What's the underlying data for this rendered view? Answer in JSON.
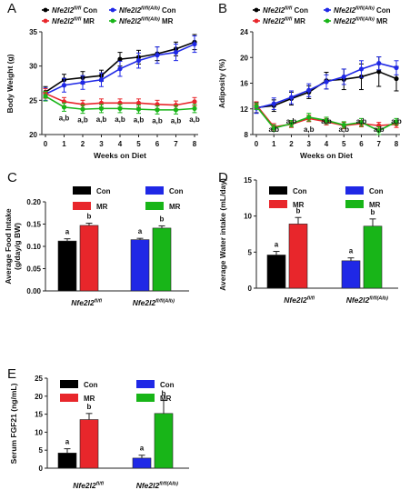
{
  "colors": {
    "Con_fl": "#000000",
    "MR_fl": "#e8262b",
    "Con_alb": "#1f28e6",
    "MR_alb": "#18b518"
  },
  "chart_data": [
    {
      "panel": "A",
      "type": "line",
      "xlabel": "Weeks on Diet",
      "ylabel": "Body Weight (g)",
      "xlim": [
        0,
        8
      ],
      "ylim": [
        20,
        35
      ],
      "yticks": [
        "20",
        "25",
        "30",
        "35"
      ],
      "xticks": [
        "0",
        "1",
        "2",
        "3",
        "4",
        "5",
        "6",
        "7",
        "8"
      ],
      "legend": [
        {
          "gene": "Nfe2l2",
          "sup": "fl/fl",
          "suffix": " Con",
          "color": "#000000"
        },
        {
          "gene": "Nfe2l2",
          "sup": "fl/fl(Alb)",
          "suffix": " Con",
          "color": "#1f28e6"
        },
        {
          "gene": "Nfe2l2",
          "sup": "fl/fl",
          "suffix": " MR",
          "color": "#e8262b"
        },
        {
          "gene": "Nfe2l2",
          "sup": "fl/fl(Alb)",
          "suffix": " MR",
          "color": "#18b518"
        }
      ],
      "x": [
        0,
        1,
        2,
        3,
        4,
        5,
        6,
        7,
        8
      ],
      "series": [
        {
          "color": "#000000",
          "values": [
            26.2,
            28.0,
            28.3,
            28.6,
            31.0,
            31.3,
            31.8,
            32.5,
            33.5
          ],
          "err": [
            0.8,
            0.8,
            0.9,
            0.8,
            1.0,
            1.0,
            1.0,
            1.0,
            1.1
          ]
        },
        {
          "color": "#1f28e6",
          "values": [
            25.9,
            27.2,
            27.6,
            28.0,
            29.6,
            30.8,
            31.6,
            32.0,
            33.2
          ],
          "err": [
            0.9,
            1.0,
            1.0,
            1.0,
            1.1,
            1.1,
            1.2,
            1.2,
            1.2
          ]
        },
        {
          "color": "#e8262b",
          "values": [
            26.0,
            24.8,
            24.4,
            24.6,
            24.6,
            24.6,
            24.4,
            24.3,
            24.8
          ],
          "err": [
            0.7,
            0.6,
            0.6,
            0.6,
            0.6,
            0.6,
            0.6,
            0.6,
            0.6
          ]
        },
        {
          "color": "#18b518",
          "values": [
            25.6,
            24.0,
            23.7,
            23.8,
            23.8,
            23.7,
            23.6,
            23.6,
            23.8
          ],
          "err": [
            0.7,
            0.6,
            0.6,
            0.6,
            0.6,
            0.6,
            0.6,
            0.6,
            0.6
          ]
        }
      ],
      "annotations": [
        "a,b",
        "a,b",
        "a,b",
        "a,b",
        "a,b",
        "a,b",
        "a,b",
        "a,b"
      ]
    },
    {
      "panel": "B",
      "type": "line",
      "xlabel": "Weeks on Diet",
      "ylabel": "Adiposity (%)",
      "xlim": [
        0,
        8
      ],
      "ylim": [
        8,
        24
      ],
      "yticks": [
        "8",
        "12",
        "16",
        "20",
        "24"
      ],
      "xticks": [
        "0",
        "1",
        "2",
        "3",
        "4",
        "5",
        "6",
        "7",
        "8"
      ],
      "legend": [
        {
          "gene": "Nfe2l2",
          "sup": "fl/fl",
          "suffix": " Con",
          "color": "#000000"
        },
        {
          "gene": "Nfe2l2",
          "sup": "fl/fl(Alb)",
          "suffix": " Con",
          "color": "#1f28e6"
        },
        {
          "gene": "Nfe2l2",
          "sup": "fl/fl",
          "suffix": " MR",
          "color": "#e8262b"
        },
        {
          "gene": "Nfe2l2",
          "sup": "fl/fl(Alb)",
          "suffix": " MR",
          "color": "#18b518"
        }
      ],
      "x": [
        0,
        1,
        2,
        3,
        4,
        5,
        6,
        7,
        8
      ],
      "series": [
        {
          "color": "#000000",
          "values": [
            12.2,
            12.5,
            13.6,
            14.6,
            16.4,
            16.6,
            17.0,
            17.8,
            16.7
          ],
          "err": [
            0.8,
            0.9,
            1.0,
            1.0,
            1.3,
            1.6,
            2.0,
            2.3,
            1.9
          ]
        },
        {
          "color": "#1f28e6",
          "values": [
            12.1,
            12.8,
            13.8,
            14.9,
            16.2,
            17.0,
            18.2,
            19.1,
            18.4
          ],
          "err": [
            0.8,
            0.9,
            1.0,
            1.0,
            1.1,
            1.2,
            1.3,
            1.0,
            1.1
          ]
        },
        {
          "color": "#e8262b",
          "values": [
            12.6,
            9.2,
            9.6,
            10.5,
            10.0,
            9.4,
            9.7,
            9.4,
            9.6
          ],
          "err": [
            0.5,
            0.5,
            0.5,
            0.5,
            0.5,
            0.5,
            0.5,
            0.5,
            0.5
          ]
        },
        {
          "color": "#18b518",
          "values": [
            12.4,
            9.0,
            9.7,
            10.7,
            10.2,
            9.5,
            9.9,
            8.6,
            10.0
          ],
          "err": [
            0.5,
            0.5,
            0.5,
            0.6,
            0.5,
            0.5,
            0.6,
            0.6,
            0.5
          ]
        }
      ],
      "annotations": [
        "a,b",
        "a,b",
        "a,b",
        "a,b",
        "a,b",
        "a,b",
        "a,b",
        "a,b"
      ]
    },
    {
      "panel": "C",
      "type": "bar",
      "ylabel_lines": [
        "Average Food Intake",
        "(g/day/g BW)"
      ],
      "ylim": [
        0,
        0.2
      ],
      "yticks": [
        "0.00",
        "0.05",
        "0.10",
        "0.15",
        "0.20"
      ],
      "categories": [
        {
          "gene": "Nfe2l2",
          "sup": "fl/fl"
        },
        {
          "gene": "Nfe2l2",
          "sup": "fl/fl(Alb)"
        }
      ],
      "legend": [
        {
          "label": "Con",
          "color": "#000000"
        },
        {
          "label": "MR",
          "color": "#e8262b"
        },
        {
          "label": "Con",
          "color": "#1f28e6"
        },
        {
          "label": "MR",
          "color": "#18b518"
        }
      ],
      "bars": [
        {
          "value": 0.112,
          "err": 0.005,
          "color": "#000000",
          "letter": "a"
        },
        {
          "value": 0.147,
          "err": 0.005,
          "color": "#e8262b",
          "letter": "b"
        },
        {
          "value": 0.115,
          "err": 0.003,
          "color": "#1f28e6",
          "letter": "a"
        },
        {
          "value": 0.141,
          "err": 0.005,
          "color": "#18b518",
          "letter": "b"
        }
      ]
    },
    {
      "panel": "D",
      "type": "bar",
      "ylabel_lines": [
        "Average Water intake (mL/day)"
      ],
      "ylim": [
        0,
        15
      ],
      "yticks": [
        "0",
        "5",
        "10",
        "15"
      ],
      "categories": [
        {
          "gene": "Nfe2l2",
          "sup": "fl/fl"
        },
        {
          "gene": "Nfe2l2",
          "sup": "fl/fl(Alb)"
        }
      ],
      "legend": [
        {
          "label": "Con",
          "color": "#000000"
        },
        {
          "label": "MR",
          "color": "#e8262b"
        },
        {
          "label": "Con",
          "color": "#1f28e6"
        },
        {
          "label": "MR",
          "color": "#18b518"
        }
      ],
      "bars": [
        {
          "value": 4.6,
          "err": 0.5,
          "color": "#000000",
          "letter": "a"
        },
        {
          "value": 8.9,
          "err": 0.9,
          "color": "#e8262b",
          "letter": "b"
        },
        {
          "value": 3.8,
          "err": 0.4,
          "color": "#1f28e6",
          "letter": "a"
        },
        {
          "value": 8.6,
          "err": 1.0,
          "color": "#18b518",
          "letter": "b"
        }
      ]
    },
    {
      "panel": "E",
      "type": "bar",
      "ylabel_lines": [
        "Serum FGF21 (ng/mL)"
      ],
      "ylim": [
        0,
        25
      ],
      "yticks": [
        "0",
        "5",
        "10",
        "15",
        "20",
        "25"
      ],
      "categories": [
        {
          "gene": "Nfe2l2",
          "sup": "fl/fl"
        },
        {
          "gene": "Nfe2l2",
          "sup": "fl/fl(Alb)"
        }
      ],
      "legend": [
        {
          "label": "Con",
          "color": "#000000"
        },
        {
          "label": "MR",
          "color": "#e8262b"
        },
        {
          "label": "Con",
          "color": "#1f28e6"
        },
        {
          "label": "MR",
          "color": "#18b518"
        }
      ],
      "bars": [
        {
          "value": 4.2,
          "err": 1.2,
          "color": "#000000",
          "letter": "a"
        },
        {
          "value": 13.5,
          "err": 1.7,
          "color": "#e8262b",
          "letter": "b"
        },
        {
          "value": 2.8,
          "err": 0.8,
          "color": "#1f28e6",
          "letter": "a"
        },
        {
          "value": 15.2,
          "err": 3.6,
          "color": "#18b518",
          "letter": "b"
        }
      ]
    }
  ]
}
